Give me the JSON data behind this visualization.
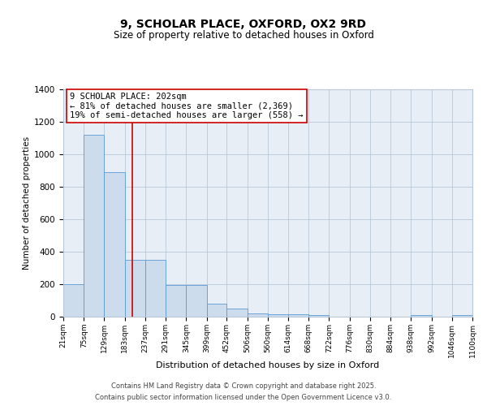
{
  "title": "9, SCHOLAR PLACE, OXFORD, OX2 9RD",
  "subtitle": "Size of property relative to detached houses in Oxford",
  "xlabel": "Distribution of detached houses by size in Oxford",
  "ylabel": "Number of detached properties",
  "bin_edges": [
    21,
    75,
    129,
    183,
    237,
    291,
    345,
    399,
    452,
    506,
    560,
    614,
    668,
    722,
    776,
    830,
    884,
    938,
    992,
    1046,
    1100
  ],
  "bar_heights": [
    200,
    1120,
    890,
    350,
    350,
    195,
    195,
    80,
    50,
    20,
    15,
    15,
    10,
    0,
    0,
    0,
    0,
    10,
    0,
    10
  ],
  "bar_color": "#ccdcec",
  "bar_edgecolor": "#5b9bd5",
  "vline_x": 202,
  "vline_color": "#cc0000",
  "annotation_text": "9 SCHOLAR PLACE: 202sqm\n← 81% of detached houses are smaller (2,369)\n19% of semi-detached houses are larger (558) →",
  "annotation_box_color": "white",
  "annotation_box_edgecolor": "#cc0000",
  "annotation_fontsize": 7.5,
  "bg_color": "#ffffff",
  "plot_bg_color": "#e8eef5",
  "grid_color": "#b8c8d8",
  "tick_labels": [
    "21sqm",
    "75sqm",
    "129sqm",
    "183sqm",
    "237sqm",
    "291sqm",
    "345sqm",
    "399sqm",
    "452sqm",
    "506sqm",
    "560sqm",
    "614sqm",
    "668sqm",
    "722sqm",
    "776sqm",
    "830sqm",
    "884sqm",
    "938sqm",
    "992sqm",
    "1046sqm",
    "1100sqm"
  ],
  "ylim": [
    0,
    1400
  ],
  "yticks": [
    0,
    200,
    400,
    600,
    800,
    1000,
    1200,
    1400
  ],
  "footer1": "Contains HM Land Registry data © Crown copyright and database right 2025.",
  "footer2": "Contains public sector information licensed under the Open Government Licence v3.0."
}
